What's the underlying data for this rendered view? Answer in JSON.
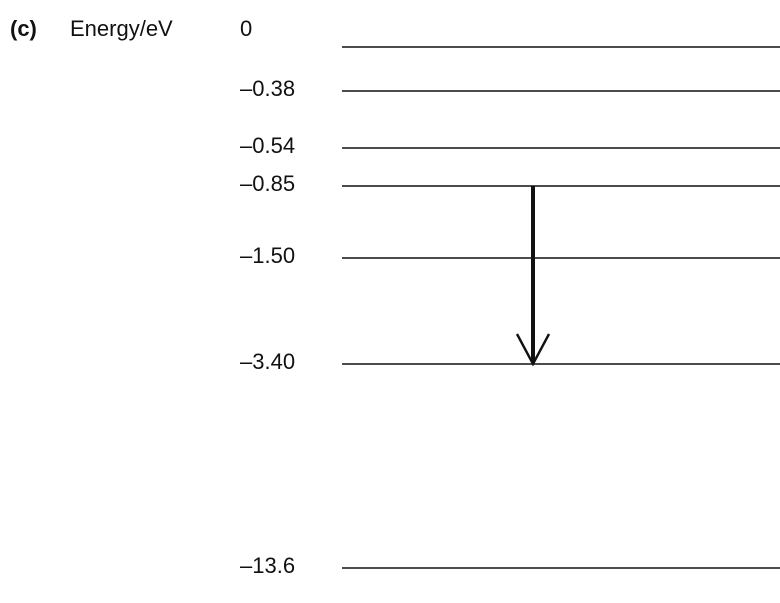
{
  "part_label": "(c)",
  "axis_title": "Energy/eV",
  "levels": [
    {
      "label": "0",
      "energy": 0
    },
    {
      "label": "–0.38",
      "energy": -0.38
    },
    {
      "label": "–0.54",
      "energy": -0.54
    },
    {
      "label": "–0.85",
      "energy": -0.85
    },
    {
      "label": "–1.50",
      "energy": -1.5
    },
    {
      "label": "–3.40",
      "energy": -3.4
    },
    {
      "label": "–13.6",
      "energy": -13.6
    }
  ],
  "transition": {
    "from_energy": -0.85,
    "to_energy": -3.4
  },
  "colors": {
    "line": "#111111",
    "arrow": "#111111"
  }
}
